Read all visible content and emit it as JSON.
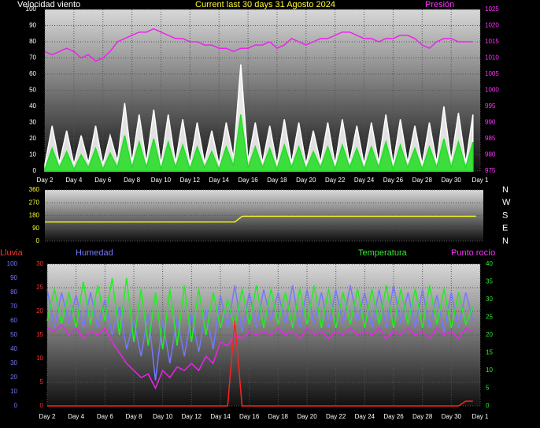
{
  "chart_data": [
    {
      "type": "line",
      "title": "Current last 30 days 31 Agosto 2024",
      "ylabel": "Velocidad viento",
      "y2label": "Presión",
      "xlim": [
        0,
        30
      ],
      "xticks": [
        {
          "value": 0,
          "label": "Day 2"
        },
        {
          "value": 2,
          "label": "Day 4"
        },
        {
          "value": 4,
          "label": "Day 6"
        },
        {
          "value": 6,
          "label": "Day 8"
        },
        {
          "value": 8,
          "label": "Day 10"
        },
        {
          "value": 10,
          "label": "Day 12"
        },
        {
          "value": 12,
          "label": "Day 14"
        },
        {
          "value": 14,
          "label": "Day 16"
        },
        {
          "value": 16,
          "label": "Day 18"
        },
        {
          "value": 18,
          "label": "Day 20"
        },
        {
          "value": 20,
          "label": "Day 22"
        },
        {
          "value": 22,
          "label": "Day 24"
        },
        {
          "value": 24,
          "label": "Day 26"
        },
        {
          "value": 26,
          "label": "Day 28"
        },
        {
          "value": 28,
          "label": "Day 30"
        },
        {
          "value": 30,
          "label": "Day 1"
        }
      ],
      "ylim": [
        0,
        100
      ],
      "yticks": [
        0,
        10,
        20,
        30,
        40,
        50,
        60,
        70,
        80,
        90,
        100
      ],
      "ytick_color": "#ffffff",
      "y2lim": [
        975,
        1025
      ],
      "y2ticks": [
        975,
        980,
        985,
        990,
        995,
        1000,
        1005,
        1010,
        1015,
        1020,
        1025
      ],
      "y2tick_color": "#ff33ff",
      "grid": true,
      "x": [
        0,
        0.5,
        1,
        1.5,
        2,
        2.5,
        3,
        3.5,
        4,
        4.5,
        5,
        5.5,
        6,
        6.5,
        7,
        7.5,
        8,
        8.5,
        9,
        9.5,
        10,
        10.5,
        11,
        11.5,
        12,
        12.5,
        13,
        13.5,
        14,
        14.5,
        15,
        15.5,
        16,
        16.5,
        17,
        17.5,
        18,
        18.5,
        19,
        19.5,
        20,
        20.5,
        21,
        21.5,
        22,
        22.5,
        23,
        23.5,
        24,
        24.5,
        25,
        25.5,
        26,
        26.5,
        27,
        27.5,
        28,
        28.5,
        29,
        29.5
      ],
      "series": [
        {
          "color": "#ffffff",
          "fill": true,
          "axis": "y",
          "values": [
            4,
            28,
            5,
            25,
            4,
            22,
            5,
            28,
            4,
            22,
            6,
            42,
            5,
            35,
            5,
            38,
            4,
            35,
            5,
            32,
            4,
            30,
            5,
            25,
            4,
            30,
            8,
            66,
            6,
            30,
            5,
            28,
            4,
            32,
            5,
            30,
            4,
            25,
            5,
            30,
            4,
            32,
            5,
            28,
            4,
            30,
            5,
            35,
            4,
            32,
            5,
            28,
            4,
            30,
            5,
            40,
            6,
            36,
            5,
            35
          ]
        },
        {
          "color": "#22dd22",
          "fill": true,
          "axis": "y",
          "values": [
            1,
            14,
            2,
            12,
            1,
            10,
            2,
            14,
            1,
            11,
            2,
            22,
            2,
            18,
            2,
            20,
            1,
            18,
            2,
            16,
            1,
            15,
            2,
            12,
            1,
            15,
            3,
            35,
            2,
            15,
            2,
            14,
            1,
            16,
            2,
            15,
            1,
            12,
            2,
            15,
            1,
            16,
            2,
            14,
            1,
            15,
            2,
            18,
            1,
            16,
            2,
            14,
            1,
            15,
            2,
            20,
            2,
            18,
            2,
            18
          ]
        },
        {
          "color": "#ee22ee",
          "fill": false,
          "axis": "y2",
          "values": [
            1012,
            1011,
            1012,
            1013,
            1012,
            1010,
            1011,
            1009,
            1010,
            1012,
            1015,
            1016,
            1017,
            1018,
            1018,
            1019,
            1018,
            1017,
            1016,
            1016,
            1015,
            1015,
            1014,
            1014,
            1013,
            1013,
            1012,
            1013,
            1013,
            1014,
            1014,
            1015,
            1013,
            1014,
            1016,
            1015,
            1014,
            1015,
            1016,
            1016,
            1017,
            1018,
            1018,
            1017,
            1016,
            1016,
            1015,
            1016,
            1016,
            1017,
            1017,
            1016,
            1014,
            1013,
            1015,
            1016,
            1016,
            1015,
            1015,
            1015
          ]
        }
      ]
    },
    {
      "type": "line",
      "xlim": [
        0,
        30
      ],
      "ylim": [
        0,
        360
      ],
      "yticks": [
        0,
        90,
        180,
        270,
        360
      ],
      "ytick_color": "#ffff33",
      "compass_labels": [
        "N",
        "W",
        "S",
        "E",
        "N"
      ],
      "grid": true,
      "x": [
        0,
        0.5,
        1,
        1.5,
        2,
        2.5,
        3,
        3.5,
        4,
        4.5,
        5,
        5.5,
        6,
        6.5,
        7,
        7.5,
        8,
        8.5,
        9,
        9.5,
        10,
        10.5,
        11,
        11.5,
        12,
        12.5,
        13,
        13.5,
        14,
        14.5,
        15,
        15.5,
        16,
        16.5,
        17,
        17.5,
        18,
        18.5,
        19,
        19.5,
        20,
        20.5,
        21,
        21.5,
        22,
        22.5,
        23,
        23.5,
        24,
        24.5,
        25,
        25.5,
        26,
        26.5,
        27,
        27.5,
        28,
        28.5,
        29,
        29.5
      ],
      "series": [
        {
          "color": "#eeee22",
          "fill": false,
          "axis": "y",
          "values": [
            135,
            135,
            135,
            135,
            135,
            135,
            135,
            135,
            135,
            135,
            135,
            135,
            135,
            135,
            135,
            135,
            135,
            135,
            135,
            135,
            135,
            135,
            135,
            135,
            135,
            135,
            135,
            175,
            175,
            175,
            175,
            175,
            175,
            175,
            175,
            175,
            175,
            175,
            175,
            175,
            175,
            175,
            175,
            175,
            175,
            175,
            175,
            175,
            175,
            175,
            175,
            175,
            175,
            175,
            175,
            175,
            175,
            175,
            175,
            175
          ]
        }
      ]
    },
    {
      "type": "line",
      "xlim": [
        0,
        30
      ],
      "xticks": [
        {
          "value": 0,
          "label": "Day 2"
        },
        {
          "value": 2,
          "label": "Day 4"
        },
        {
          "value": 4,
          "label": "Day 6"
        },
        {
          "value": 6,
          "label": "Day 8"
        },
        {
          "value": 8,
          "label": "Day 10"
        },
        {
          "value": 10,
          "label": "Day 12"
        },
        {
          "value": 12,
          "label": "Day 14"
        },
        {
          "value": 14,
          "label": "Day 16"
        },
        {
          "value": 16,
          "label": "Day 18"
        },
        {
          "value": 18,
          "label": "Day 20"
        },
        {
          "value": 20,
          "label": "Day 22"
        },
        {
          "value": 22,
          "label": "Day 24"
        },
        {
          "value": 24,
          "label": "Day 26"
        },
        {
          "value": 26,
          "label": "Day 28"
        },
        {
          "value": 28,
          "label": "Day 30"
        },
        {
          "value": 30,
          "label": "Day 1"
        }
      ],
      "ylim": [
        0,
        30
      ],
      "yticks": [
        0,
        5,
        10,
        15,
        20,
        25,
        30
      ],
      "ytick_color": "#ff3333",
      "y3lim": [
        0,
        100
      ],
      "y3ticks": [
        0,
        10,
        20,
        30,
        40,
        50,
        60,
        70,
        80,
        90,
        100
      ],
      "y3tick_color": "#7777ff",
      "y2lim": [
        0,
        40
      ],
      "y2ticks": [
        0,
        5,
        10,
        15,
        20,
        25,
        30,
        35,
        40
      ],
      "y2tick_color": "#33ee33",
      "grid": true,
      "x": [
        0,
        0.5,
        1,
        1.5,
        2,
        2.5,
        3,
        3.5,
        4,
        4.5,
        5,
        5.5,
        6,
        6.5,
        7,
        7.5,
        8,
        8.5,
        9,
        9.5,
        10,
        10.5,
        11,
        11.5,
        12,
        12.5,
        13,
        13.5,
        14,
        14.5,
        15,
        15.5,
        16,
        16.5,
        17,
        17.5,
        18,
        18.5,
        19,
        19.5,
        20,
        20.5,
        21,
        21.5,
        22,
        22.5,
        23,
        23.5,
        24,
        24.5,
        25,
        25.5,
        26,
        26.5,
        27,
        27.5,
        28,
        28.5,
        29,
        29.5
      ],
      "series": [
        {
          "name": "Humedad",
          "color": "#7777ff",
          "fill": false,
          "axis": "y3",
          "values": [
            82,
            55,
            80,
            58,
            78,
            55,
            80,
            55,
            75,
            50,
            70,
            40,
            60,
            35,
            65,
            18,
            60,
            30,
            62,
            35,
            65,
            38,
            68,
            40,
            78,
            55,
            85,
            52,
            80,
            55,
            82,
            60,
            80,
            58,
            85,
            55,
            82,
            58,
            80,
            55,
            82,
            58,
            85,
            60,
            80,
            55,
            82,
            55,
            85,
            58,
            80,
            55,
            82,
            55,
            78,
            52,
            80,
            55,
            80,
            60
          ]
        },
        {
          "name": "Temperatura",
          "color": "#22ee22",
          "fill": false,
          "axis": "y2",
          "values": [
            24,
            33,
            23,
            32,
            22,
            35,
            23,
            34,
            24,
            36,
            20,
            36,
            18,
            33,
            17,
            32,
            16,
            33,
            17,
            34,
            18,
            33,
            20,
            32,
            22,
            30,
            22,
            33,
            23,
            34,
            22,
            33,
            23,
            32,
            22,
            33,
            23,
            34,
            22,
            33,
            22,
            32,
            23,
            33,
            22,
            33,
            23,
            34,
            22,
            33,
            23,
            33,
            22,
            34,
            23,
            33,
            22,
            32,
            23,
            28
          ]
        },
        {
          "name": "Punto rocío",
          "color": "#ee22ee",
          "fill": false,
          "axis": "y2",
          "values": [
            22,
            21,
            23,
            20,
            22,
            19,
            21,
            20,
            22,
            18,
            15,
            12,
            10,
            8,
            9,
            5,
            10,
            8,
            11,
            10,
            12,
            10,
            14,
            12,
            18,
            17,
            20,
            19,
            21,
            20,
            21,
            20,
            22,
            20,
            21,
            19,
            22,
            20,
            21,
            19,
            21,
            20,
            22,
            20,
            21,
            20,
            22,
            19,
            21,
            20,
            22,
            20,
            21,
            19,
            22,
            20,
            21,
            19,
            22,
            21
          ]
        },
        {
          "name": "Lluvia",
          "color": "#ff2222",
          "fill": false,
          "axis": "y",
          "values": [
            0,
            0,
            0,
            0,
            0,
            0,
            0,
            0,
            0,
            0,
            0,
            0,
            0,
            0,
            0,
            0,
            0,
            0,
            0,
            0,
            0,
            0,
            0,
            0,
            0,
            0,
            18,
            0,
            0,
            0,
            0,
            0,
            0,
            0,
            0,
            0,
            0,
            0,
            0,
            0,
            0,
            0,
            0,
            0,
            0,
            0,
            0,
            0,
            0,
            0,
            0,
            0,
            0,
            0,
            0,
            0,
            0,
            0,
            1,
            1
          ]
        }
      ]
    }
  ]
}
